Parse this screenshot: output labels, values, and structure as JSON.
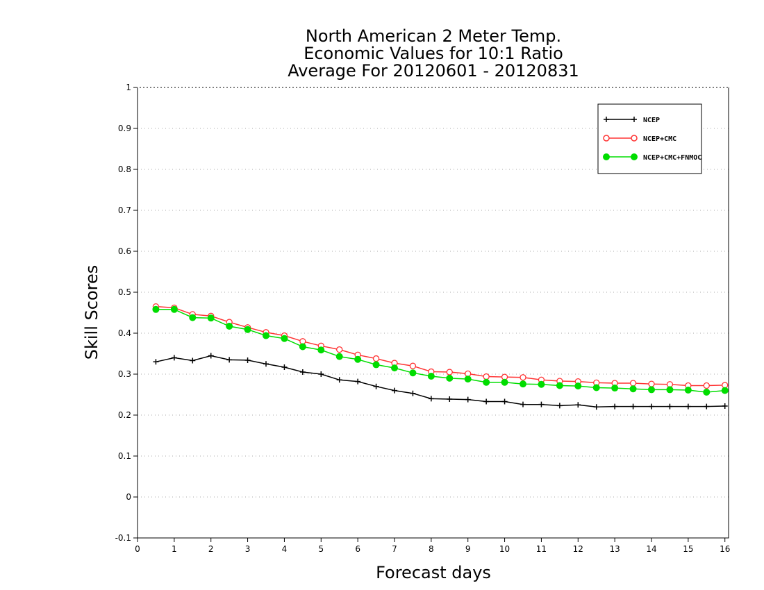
{
  "chart_data": {
    "type": "line",
    "title_lines": [
      "North American 2 Meter Temp.",
      "Economic Values for 10:1 Ratio",
      "Average For 20120601 - 20120831"
    ],
    "xlabel": "Forecast days",
    "ylabel": "Skill Scores",
    "xlim": [
      0,
      16.1
    ],
    "ylim": [
      -0.1,
      1
    ],
    "xticks": [
      0,
      1,
      2,
      3,
      4,
      5,
      6,
      7,
      8,
      9,
      10,
      11,
      12,
      13,
      14,
      15,
      16
    ],
    "xtick_labels": [
      "0",
      "1",
      "2",
      "3",
      "4",
      "5",
      "6",
      "7",
      "8",
      "9",
      "10",
      "11",
      "12",
      "13",
      "14",
      "15",
      "16"
    ],
    "yticks": [
      -0.1,
      0,
      0.1,
      0.2,
      0.3,
      0.4,
      0.5,
      0.6,
      0.7,
      0.8,
      0.9,
      1
    ],
    "ytick_labels": [
      "-0.1",
      "0",
      "0.1",
      "0.2",
      "0.3",
      "0.4",
      "0.5",
      "0.6",
      "0.7",
      "0.8",
      "0.9",
      "1"
    ],
    "grid": "horizontal dotted",
    "legend_position": "top-right",
    "x": [
      0.5,
      1,
      1.5,
      2,
      2.5,
      3,
      3.5,
      4,
      4.5,
      5,
      5.5,
      6,
      6.5,
      7,
      7.5,
      8,
      8.5,
      9,
      9.5,
      10,
      10.5,
      11,
      11.5,
      12,
      12.5,
      13,
      13.5,
      14,
      14.5,
      15,
      15.5,
      16
    ],
    "series": [
      {
        "name": "NCEP",
        "color": "#000000",
        "marker": "plus",
        "values": [
          0.33,
          0.34,
          0.333,
          0.345,
          0.335,
          0.334,
          0.325,
          0.317,
          0.305,
          0.3,
          0.286,
          0.282,
          0.27,
          0.26,
          0.253,
          0.24,
          0.239,
          0.238,
          0.233,
          0.233,
          0.226,
          0.226,
          0.223,
          0.225,
          0.22,
          0.221,
          0.221,
          0.221,
          0.221,
          0.221,
          0.221,
          0.222
        ]
      },
      {
        "name": "NCEP+CMC",
        "color": "#ff3333",
        "marker": "open-circle",
        "values": [
          0.465,
          0.462,
          0.446,
          0.442,
          0.427,
          0.414,
          0.402,
          0.394,
          0.38,
          0.369,
          0.36,
          0.347,
          0.338,
          0.327,
          0.32,
          0.306,
          0.305,
          0.301,
          0.294,
          0.293,
          0.292,
          0.286,
          0.283,
          0.282,
          0.279,
          0.278,
          0.278,
          0.276,
          0.275,
          0.272,
          0.272,
          0.273
        ]
      },
      {
        "name": "NCEP+CMC+FNMOC",
        "color": "#00dd00",
        "marker": "filled-circle",
        "values": [
          0.458,
          0.458,
          0.438,
          0.437,
          0.417,
          0.409,
          0.394,
          0.387,
          0.367,
          0.359,
          0.343,
          0.336,
          0.323,
          0.315,
          0.303,
          0.295,
          0.29,
          0.288,
          0.28,
          0.28,
          0.276,
          0.275,
          0.272,
          0.271,
          0.267,
          0.266,
          0.264,
          0.262,
          0.262,
          0.261,
          0.256,
          0.26
        ]
      }
    ]
  }
}
